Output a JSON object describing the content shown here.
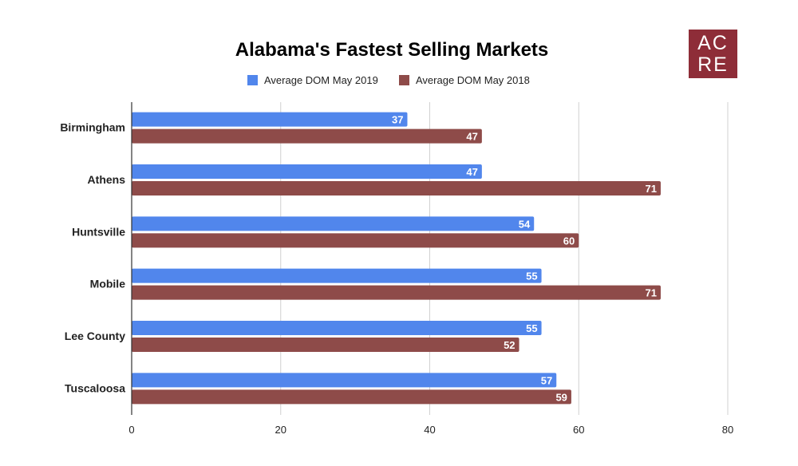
{
  "chart_data": {
    "type": "bar",
    "orientation": "horizontal",
    "title": "Alabama's Fastest Selling Markets",
    "categories": [
      "Birmingham",
      "Athens",
      "Huntsville",
      "Mobile",
      "Lee County",
      "Tuscaloosa"
    ],
    "series": [
      {
        "name": "Average DOM May 2019",
        "color": "#5186ec",
        "values": [
          37,
          47,
          54,
          55,
          55,
          57
        ]
      },
      {
        "name": "Average DOM May 2018",
        "color": "#8e4b49",
        "values": [
          47,
          71,
          60,
          71,
          52,
          59
        ]
      }
    ],
    "xlabel": "",
    "ylabel": "",
    "xlim": [
      0,
      80
    ],
    "xticks": [
      0,
      20,
      40,
      60,
      80
    ],
    "grid": true,
    "legend": "top-center",
    "data_labels": true
  },
  "logo": {
    "line1": "AC",
    "line2": "RE",
    "color": "#8e2d38"
  }
}
